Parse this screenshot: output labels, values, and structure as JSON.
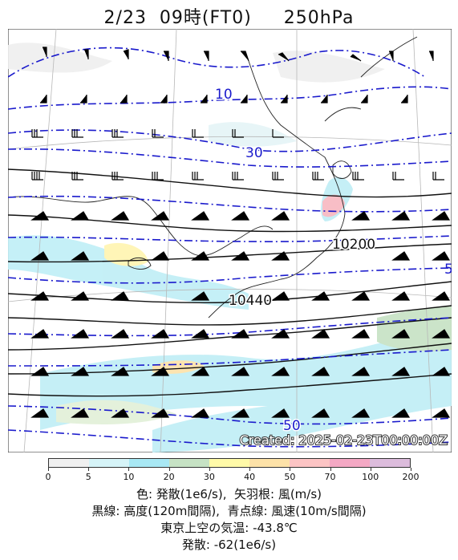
{
  "title": "2/23  09時(FT0)     250hPa",
  "map": {
    "created": "Created: 2025-02-23T00:00:00Z",
    "contour_labels": {
      "height_1": "10200",
      "height_2": "10440",
      "wind_10": "10",
      "wind_30": "30",
      "wind_50": "50",
      "wind_edge": "5"
    }
  },
  "colorbar": {
    "ticks": [
      "0",
      "5",
      "10",
      "20",
      "30",
      "40",
      "50",
      "70",
      "100",
      "200"
    ],
    "colors": [
      "#f0f0f0",
      "#d6f4f8",
      "#a8e8f4",
      "#c6e2c4",
      "#fffaa8",
      "#fde2a8",
      "#fcc4c4",
      "#f4a8c4",
      "#dcbcdc"
    ]
  },
  "legend": {
    "line1": "色: 発散(1e6/s),  矢羽根: 風(m/s)",
    "line2": "黒線: 高度(120m間隔),  青点線: 風速(10m/s間隔)",
    "line3": "東京上空の気温: -43.8℃",
    "line4": "発散: -62(1e6/s)"
  }
}
